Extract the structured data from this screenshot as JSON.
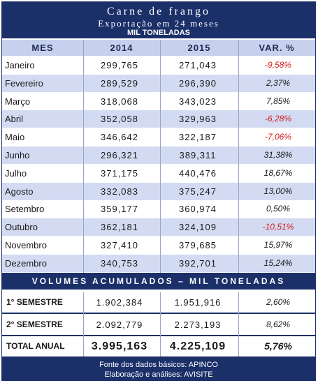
{
  "header": {
    "title": "Carne de frango",
    "subtitle": "Exportação em 24 meses",
    "unit": "MIL TONELADAS"
  },
  "columns": {
    "mes": "MES",
    "y2014": "2014",
    "y2015": "2015",
    "var": "VAR. %"
  },
  "months": [
    {
      "mes": "Janeiro",
      "y2014": "299,765",
      "y2015": "271,043",
      "var": "-9,58%",
      "negative": true
    },
    {
      "mes": "Fevereiro",
      "y2014": "289,529",
      "y2015": "296,390",
      "var": "2,37%",
      "negative": false
    },
    {
      "mes": "Março",
      "y2014": "318,068",
      "y2015": "343,023",
      "var": "7,85%",
      "negative": false
    },
    {
      "mes": "Abril",
      "y2014": "352,058",
      "y2015": "329,963",
      "var": "-6,28%",
      "negative": true
    },
    {
      "mes": "Maio",
      "y2014": "346,642",
      "y2015": "322,187",
      "var": "-7,06%",
      "negative": true
    },
    {
      "mes": "Junho",
      "y2014": "296,321",
      "y2015": "389,311",
      "var": "31,38%",
      "negative": false
    },
    {
      "mes": "Julho",
      "y2014": "371,175",
      "y2015": "440,476",
      "var": "18,67%",
      "negative": false
    },
    {
      "mes": "Agosto",
      "y2014": "332,083",
      "y2015": "375,247",
      "var": "13,00%",
      "negative": false
    },
    {
      "mes": "Setembro",
      "y2014": "359,177",
      "y2015": "360,974",
      "var": "0,50%",
      "negative": false
    },
    {
      "mes": "Outubro",
      "y2014": "362,181",
      "y2015": "324,109",
      "var": "-10,51%",
      "negative": true
    },
    {
      "mes": "Novembro",
      "y2014": "327,410",
      "y2015": "379,685",
      "var": "15,97%",
      "negative": false
    },
    {
      "mes": "Dezembro",
      "y2014": "340,753",
      "y2015": "392,701",
      "var": "15,24%",
      "negative": false
    }
  ],
  "accumulated_title": "VOLUMES ACUMULADOS – MIL TONELADAS",
  "summary": [
    {
      "label": "1° SEMESTRE",
      "y2014": "1.902,384",
      "y2015": "1.951,916",
      "var": "2,60%"
    },
    {
      "label": "2° SEMESTRE",
      "y2014": "2.092,779",
      "y2015": "2.273,193",
      "var": "8,62%"
    },
    {
      "label": "TOTAL ANUAL",
      "y2014": "3.995,163",
      "y2015": "4.225,109",
      "var": "5,76%"
    }
  ],
  "footer": {
    "source": "Fonte dos dados básicos: APINCO",
    "credit": "Elaboração e análises: AVISITE"
  },
  "colors": {
    "navy": "#1b2f69",
    "stripe": "#d3dbf2",
    "header_row": "#c7d0ec",
    "negative": "#d01c1c"
  }
}
